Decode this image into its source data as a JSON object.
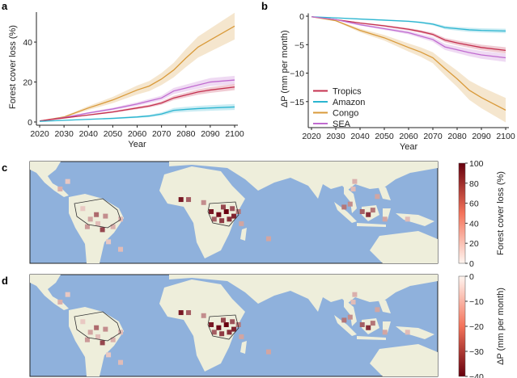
{
  "chart_data": [
    {
      "panel": "a",
      "type": "line",
      "xlabel": "Year",
      "ylabel": "Forest cover loss (%)",
      "xlim": [
        2020,
        2100
      ],
      "ylim": [
        0,
        55
      ],
      "xticks": [
        2020,
        2030,
        2040,
        2050,
        2060,
        2070,
        2080,
        2090,
        2100
      ],
      "yticks": [
        0,
        20,
        40
      ],
      "x": [
        2020,
        2030,
        2040,
        2050,
        2060,
        2065,
        2070,
        2075,
        2080,
        2085,
        2090,
        2100
      ],
      "series": [
        {
          "name": "Congo",
          "color": "#d99a3a",
          "values": [
            0.5,
            2.5,
            7,
            11,
            16,
            18,
            21.5,
            26,
            32,
            37.5,
            41,
            48
          ],
          "band": 0.14
        },
        {
          "name": "SEA",
          "color": "#c06bd0",
          "values": [
            0.5,
            2.2,
            4.5,
            6.5,
            9,
            10.5,
            12,
            15.5,
            17,
            18.5,
            20,
            21
          ],
          "band": 0.1
        },
        {
          "name": "Tropics",
          "color": "#c4304f",
          "values": [
            0.5,
            2,
            3.5,
            5,
            7,
            8,
            9.5,
            12,
            13.5,
            15,
            16,
            17.5
          ],
          "band": 0.09
        },
        {
          "name": "Amazon",
          "color": "#2bb5d0",
          "values": [
            0.3,
            0.8,
            1.3,
            1.8,
            2.5,
            3,
            4,
            5.8,
            6.3,
            6.7,
            7,
            7.5
          ],
          "band": 0.2
        }
      ]
    },
    {
      "panel": "b",
      "type": "line",
      "xlabel": "Year",
      "ylabel": "ΔP (mm per month)",
      "xlim": [
        2020,
        2100
      ],
      "ylim": [
        -19,
        0.5
      ],
      "xticks": [
        2020,
        2030,
        2040,
        2050,
        2060,
        2070,
        2080,
        2090,
        2100
      ],
      "yticks": [
        0,
        -5,
        -10,
        -15
      ],
      "legend": "bottom-left",
      "x": [
        2020,
        2030,
        2040,
        2050,
        2060,
        2065,
        2070,
        2075,
        2080,
        2085,
        2090,
        2100
      ],
      "series": [
        {
          "name": "Tropics",
          "color": "#c4304f",
          "values": [
            -0.1,
            -0.6,
            -1.2,
            -1.7,
            -2.3,
            -2.7,
            -3.2,
            -4.2,
            -4.7,
            -5.1,
            -5.5,
            -6.0
          ],
          "band": 0.09
        },
        {
          "name": "Amazon",
          "color": "#2bb5d0",
          "values": [
            -0.1,
            -0.3,
            -0.5,
            -0.7,
            -0.9,
            -1.1,
            -1.4,
            -2.0,
            -2.2,
            -2.4,
            -2.5,
            -2.6
          ],
          "band": 0.15
        },
        {
          "name": "Congo",
          "color": "#d99a3a",
          "values": [
            -0.1,
            -0.8,
            -2.5,
            -3.8,
            -5.5,
            -6.3,
            -7.3,
            -9.2,
            -11,
            -13,
            -14.3,
            -16.5
          ],
          "band": 0.13
        },
        {
          "name": "SEA",
          "color": "#c06bd0",
          "values": [
            -0.1,
            -0.6,
            -1.5,
            -2.2,
            -2.9,
            -3.5,
            -4.1,
            -5.4,
            -5.9,
            -6.4,
            -6.8,
            -7.3
          ],
          "band": 0.1
        }
      ]
    },
    {
      "panel": "c",
      "type": "heatmap",
      "colorbar_label": "Forest cover loss (%)",
      "colorbar_ticks": [
        0,
        20,
        40,
        60,
        80,
        100
      ],
      "range": [
        0,
        100
      ]
    },
    {
      "panel": "d",
      "type": "heatmap",
      "colorbar_label": "ΔP (mm per month)",
      "colorbar_ticks": [
        0,
        -10,
        -20,
        -30,
        -40
      ],
      "range": [
        -40,
        0
      ]
    }
  ],
  "map_cells": [
    [
      -90,
      15,
      25
    ],
    [
      -85,
      20,
      15
    ],
    [
      -70,
      -5,
      30
    ],
    [
      -65,
      -8,
      20
    ],
    [
      -60,
      -3,
      40
    ],
    [
      -55,
      -10,
      25
    ],
    [
      -62,
      -12,
      70
    ],
    [
      -72,
      -10,
      35
    ],
    [
      -50,
      -5,
      20
    ],
    [
      -75,
      2,
      15
    ],
    [
      -58,
      -20,
      15
    ],
    [
      -50,
      -25,
      20
    ],
    [
      -66,
      -2,
      55
    ],
    [
      10,
      0,
      90
    ],
    [
      15,
      -2,
      95
    ],
    [
      20,
      0,
      100
    ],
    [
      25,
      -3,
      85
    ],
    [
      18,
      3,
      70
    ],
    [
      12,
      -5,
      60
    ],
    [
      22,
      -5,
      80
    ],
    [
      28,
      0,
      50
    ],
    [
      -10,
      8,
      90
    ],
    [
      -5,
      8,
      60
    ],
    [
      5,
      6,
      40
    ],
    [
      30,
      -8,
      30
    ],
    [
      17,
      -6,
      75
    ],
    [
      24,
      2,
      65
    ],
    [
      102,
      5,
      40
    ],
    [
      110,
      0,
      60
    ],
    [
      114,
      -2,
      80
    ],
    [
      117,
      1,
      50
    ],
    [
      120,
      10,
      30
    ],
    [
      104,
      15,
      20
    ],
    [
      125,
      -5,
      30
    ],
    [
      98,
      3,
      50
    ],
    [
      140,
      -5,
      20
    ],
    [
      105,
      20,
      25
    ],
    [
      48,
      -18,
      30
    ]
  ],
  "colors": {
    "ocean": "#8fb1dc",
    "land": "#eeeedb"
  }
}
